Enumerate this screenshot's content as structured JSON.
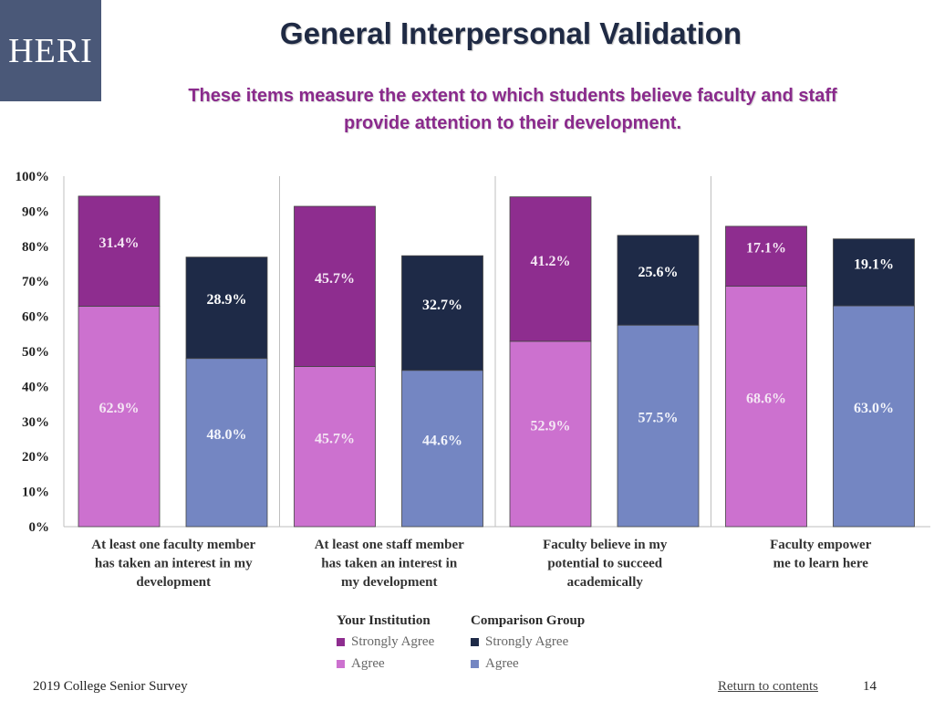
{
  "logo": {
    "text": "HERI"
  },
  "header": {
    "title": "General Interpersonal Validation",
    "subtitle_line1": "These items measure the extent to which students believe faculty and staff",
    "subtitle_line2": "provide attention to their development."
  },
  "colors": {
    "inst_strongly": "#8e2d8f",
    "inst_agree": "#cc71cf",
    "comp_strongly": "#1e2a47",
    "comp_agree": "#7486c2"
  },
  "chart_data": {
    "type": "bar",
    "stacked": true,
    "title": "General Interpersonal Validation",
    "ylim": [
      0,
      100
    ],
    "yticks": [
      "0%",
      "10%",
      "20%",
      "30%",
      "40%",
      "50%",
      "60%",
      "70%",
      "80%",
      "90%",
      "100%"
    ],
    "categories": [
      [
        "At least one faculty member",
        "has taken an interest in my",
        "development"
      ],
      [
        "At least one staff  member",
        "has taken  an interest in",
        "my development"
      ],
      [
        "Faculty believe in my",
        "potential to succeed",
        "academically"
      ],
      [
        "Faculty empower",
        "me to learn here"
      ]
    ],
    "groups": [
      {
        "name": "Your Institution",
        "series": [
          {
            "name": "Agree",
            "values": [
              62.9,
              45.7,
              52.9,
              68.6
            ],
            "labels": [
              "62.9%",
              "45.7%",
              "52.9%",
              "68.6%"
            ]
          },
          {
            "name": "Strongly Agree",
            "values": [
              31.4,
              45.7,
              41.2,
              17.1
            ],
            "labels": [
              "31.4%",
              "45.7%",
              "41.2%",
              "17.1%"
            ]
          }
        ]
      },
      {
        "name": "Comparison Group",
        "series": [
          {
            "name": "Agree",
            "values": [
              48.0,
              44.6,
              57.5,
              63.0
            ],
            "labels": [
              "48.0%",
              "44.6%",
              "57.5%",
              "63.0%"
            ]
          },
          {
            "name": "Strongly Agree",
            "values": [
              28.9,
              32.7,
              25.6,
              19.1
            ],
            "labels": [
              "28.9%",
              "32.7%",
              "25.6%",
              "19.1%"
            ]
          }
        ]
      }
    ]
  },
  "legend": {
    "inst_title": "Your Institution",
    "comp_title": "Comparison Group",
    "strongly": "Strongly Agree",
    "agree": "Agree"
  },
  "footer": {
    "survey": "2019 College Senior Survey",
    "link": "Return to contents",
    "page": "14"
  }
}
